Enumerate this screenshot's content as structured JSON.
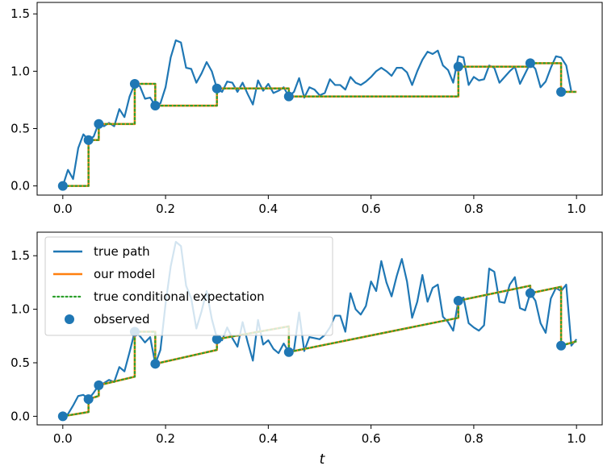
{
  "chart_data": [
    {
      "type": "line",
      "panel": "top",
      "title": "",
      "xlabel": "",
      "ylabel": "",
      "xlim": [
        -0.05,
        1.05
      ],
      "ylim": [
        -0.08,
        1.6
      ],
      "xticks": [
        0.0,
        0.2,
        0.4,
        0.6,
        0.8,
        1.0
      ],
      "xtick_labels": [
        "0.0",
        "0.2",
        "0.4",
        "0.6",
        "0.8",
        "1.0"
      ],
      "yticks": [
        0.0,
        0.5,
        1.0,
        1.5
      ],
      "ytick_labels": [
        "0.0",
        "0.5",
        "1.0",
        "1.5"
      ],
      "grid": false,
      "legend": null,
      "series": [
        {
          "name": "true path",
          "kind": "line",
          "color": "#1f77b4",
          "x": [
            0.0,
            0.01,
            0.02,
            0.03,
            0.04,
            0.05,
            0.06,
            0.07,
            0.08,
            0.09,
            0.1,
            0.11,
            0.12,
            0.13,
            0.14,
            0.15,
            0.16,
            0.17,
            0.18,
            0.19,
            0.2,
            0.21,
            0.22,
            0.23,
            0.24,
            0.25,
            0.26,
            0.27,
            0.28,
            0.29,
            0.3,
            0.31,
            0.32,
            0.33,
            0.34,
            0.35,
            0.36,
            0.37,
            0.38,
            0.39,
            0.4,
            0.41,
            0.42,
            0.43,
            0.44,
            0.45,
            0.46,
            0.47,
            0.48,
            0.49,
            0.5,
            0.51,
            0.52,
            0.53,
            0.54,
            0.55,
            0.56,
            0.57,
            0.58,
            0.59,
            0.6,
            0.61,
            0.62,
            0.63,
            0.64,
            0.65,
            0.66,
            0.67,
            0.68,
            0.69,
            0.7,
            0.71,
            0.72,
            0.73,
            0.74,
            0.75,
            0.76,
            0.77,
            0.78,
            0.79,
            0.8,
            0.81,
            0.82,
            0.83,
            0.84,
            0.85,
            0.86,
            0.87,
            0.88,
            0.89,
            0.9,
            0.91,
            0.92,
            0.93,
            0.94,
            0.95,
            0.96,
            0.97,
            0.98,
            0.99,
            1.0
          ],
          "y": [
            0.0,
            0.14,
            0.06,
            0.33,
            0.45,
            0.4,
            0.43,
            0.55,
            0.52,
            0.55,
            0.52,
            0.67,
            0.6,
            0.78,
            0.89,
            0.87,
            0.76,
            0.77,
            0.7,
            0.72,
            0.86,
            1.12,
            1.27,
            1.25,
            1.03,
            1.02,
            0.9,
            0.98,
            1.08,
            1.0,
            0.85,
            0.82,
            0.91,
            0.9,
            0.82,
            0.9,
            0.8,
            0.71,
            0.92,
            0.83,
            0.89,
            0.81,
            0.83,
            0.86,
            0.78,
            0.82,
            0.94,
            0.77,
            0.86,
            0.84,
            0.79,
            0.81,
            0.93,
            0.88,
            0.88,
            0.84,
            0.95,
            0.9,
            0.88,
            0.91,
            0.95,
            1.0,
            1.03,
            1.0,
            0.96,
            1.03,
            1.03,
            0.99,
            0.88,
            1.0,
            1.1,
            1.17,
            1.15,
            1.18,
            1.05,
            1.01,
            0.9,
            1.13,
            1.12,
            0.88,
            0.95,
            0.92,
            0.93,
            1.05,
            1.03,
            0.9,
            0.95,
            1.0,
            1.04,
            0.89,
            0.98,
            1.07,
            1.02,
            0.86,
            0.91,
            1.03,
            1.13,
            1.12,
            1.05,
            0.82,
            0.82
          ]
        },
        {
          "name": "our model",
          "kind": "line",
          "color": "#ff7f0e",
          "x": [
            0.0,
            0.05,
            0.05,
            0.07,
            0.07,
            0.14,
            0.14,
            0.18,
            0.18,
            0.3,
            0.3,
            0.44,
            0.44,
            0.77,
            0.77,
            0.91,
            0.91,
            0.97,
            0.97,
            1.0
          ],
          "y": [
            0.0,
            0.0,
            0.4,
            0.4,
            0.54,
            0.54,
            0.89,
            0.89,
            0.7,
            0.7,
            0.85,
            0.85,
            0.78,
            0.78,
            1.04,
            1.04,
            1.07,
            1.07,
            0.82,
            0.82
          ]
        },
        {
          "name": "true conditional expectation",
          "kind": "dotted",
          "color": "#2ca02c",
          "x": [
            0.0,
            0.05,
            0.05,
            0.07,
            0.07,
            0.14,
            0.14,
            0.18,
            0.18,
            0.3,
            0.3,
            0.44,
            0.44,
            0.77,
            0.77,
            0.91,
            0.91,
            0.97,
            0.97,
            1.0
          ],
          "y": [
            0.0,
            0.0,
            0.4,
            0.4,
            0.54,
            0.54,
            0.89,
            0.89,
            0.7,
            0.7,
            0.85,
            0.85,
            0.78,
            0.78,
            1.04,
            1.04,
            1.07,
            1.07,
            0.82,
            0.82
          ]
        },
        {
          "name": "observed",
          "kind": "scatter",
          "color": "#1f77b4",
          "x": [
            0.0,
            0.05,
            0.07,
            0.14,
            0.18,
            0.3,
            0.44,
            0.77,
            0.91,
            0.97
          ],
          "y": [
            0.0,
            0.4,
            0.54,
            0.89,
            0.7,
            0.85,
            0.78,
            1.04,
            1.07,
            0.82
          ]
        }
      ]
    },
    {
      "type": "line",
      "panel": "bottom",
      "title": "",
      "xlabel": "t",
      "ylabel": "",
      "xlim": [
        -0.05,
        1.05
      ],
      "ylim": [
        -0.08,
        1.72
      ],
      "xticks": [
        0.0,
        0.2,
        0.4,
        0.6,
        0.8,
        1.0
      ],
      "xtick_labels": [
        "0.0",
        "0.2",
        "0.4",
        "0.6",
        "0.8",
        "1.0"
      ],
      "yticks": [
        0.0,
        0.5,
        1.0,
        1.5
      ],
      "ytick_labels": [
        "0.0",
        "0.5",
        "1.0",
        "1.5"
      ],
      "grid": false,
      "legend": {
        "location": "upper-left",
        "entries": [
          "true path",
          "our model",
          "true conditional expectation",
          "observed"
        ]
      },
      "series": [
        {
          "name": "true path",
          "kind": "line",
          "color": "#1f77b4",
          "x": [
            0.0,
            0.01,
            0.02,
            0.03,
            0.04,
            0.05,
            0.06,
            0.07,
            0.08,
            0.09,
            0.1,
            0.11,
            0.12,
            0.13,
            0.14,
            0.15,
            0.16,
            0.17,
            0.18,
            0.19,
            0.2,
            0.21,
            0.22,
            0.23,
            0.24,
            0.25,
            0.26,
            0.27,
            0.28,
            0.29,
            0.3,
            0.31,
            0.32,
            0.33,
            0.34,
            0.35,
            0.36,
            0.37,
            0.38,
            0.39,
            0.4,
            0.41,
            0.42,
            0.43,
            0.44,
            0.45,
            0.46,
            0.47,
            0.48,
            0.49,
            0.5,
            0.51,
            0.52,
            0.53,
            0.54,
            0.55,
            0.56,
            0.57,
            0.58,
            0.59,
            0.6,
            0.61,
            0.62,
            0.63,
            0.64,
            0.65,
            0.66,
            0.67,
            0.68,
            0.69,
            0.7,
            0.71,
            0.72,
            0.73,
            0.74,
            0.75,
            0.76,
            0.77,
            0.78,
            0.79,
            0.8,
            0.81,
            0.82,
            0.83,
            0.84,
            0.85,
            0.86,
            0.87,
            0.88,
            0.89,
            0.9,
            0.91,
            0.92,
            0.93,
            0.94,
            0.95,
            0.96,
            0.97,
            0.98,
            0.99,
            1.0
          ],
          "y": [
            0.0,
            0.02,
            0.1,
            0.19,
            0.2,
            0.16,
            0.22,
            0.29,
            0.31,
            0.34,
            0.32,
            0.46,
            0.42,
            0.6,
            0.79,
            0.75,
            0.69,
            0.74,
            0.49,
            0.62,
            1.05,
            1.4,
            1.63,
            1.59,
            1.22,
            1.1,
            0.82,
            0.98,
            1.17,
            0.91,
            0.73,
            0.71,
            0.83,
            0.73,
            0.65,
            0.88,
            0.69,
            0.52,
            0.9,
            0.67,
            0.71,
            0.63,
            0.59,
            0.68,
            0.6,
            0.62,
            0.97,
            0.61,
            0.74,
            0.73,
            0.72,
            0.76,
            0.83,
            0.94,
            0.94,
            0.79,
            1.15,
            1.0,
            0.95,
            1.03,
            1.26,
            1.17,
            1.45,
            1.25,
            1.12,
            1.31,
            1.47,
            1.26,
            0.92,
            1.07,
            1.32,
            1.07,
            1.2,
            1.23,
            0.93,
            0.88,
            0.8,
            1.08,
            1.11,
            0.87,
            0.83,
            0.8,
            0.85,
            1.38,
            1.35,
            1.07,
            1.06,
            1.23,
            1.3,
            1.01,
            0.99,
            1.15,
            1.08,
            0.87,
            0.78,
            1.1,
            1.2,
            1.17,
            1.23,
            0.66,
            0.72
          ]
        },
        {
          "name": "our model",
          "kind": "line",
          "color": "#ff7f0e",
          "x": [
            0.0,
            0.05,
            0.05,
            0.07,
            0.07,
            0.14,
            0.14,
            0.18,
            0.18,
            0.3,
            0.3,
            0.44,
            0.44,
            0.77,
            0.77,
            0.91,
            0.91,
            0.97,
            0.97,
            1.0
          ],
          "y": [
            0.0,
            0.04,
            0.16,
            0.19,
            0.29,
            0.37,
            0.79,
            0.79,
            0.49,
            0.62,
            0.72,
            0.84,
            0.6,
            0.92,
            1.08,
            1.22,
            1.15,
            1.21,
            0.66,
            0.7
          ]
        },
        {
          "name": "true conditional expectation",
          "kind": "dotted",
          "color": "#2ca02c",
          "x": [
            0.0,
            0.05,
            0.05,
            0.07,
            0.07,
            0.14,
            0.14,
            0.18,
            0.18,
            0.3,
            0.3,
            0.44,
            0.44,
            0.77,
            0.77,
            0.91,
            0.91,
            0.97,
            0.97,
            1.0
          ],
          "y": [
            0.0,
            0.04,
            0.16,
            0.19,
            0.29,
            0.37,
            0.79,
            0.79,
            0.49,
            0.62,
            0.72,
            0.84,
            0.6,
            0.92,
            1.08,
            1.22,
            1.15,
            1.21,
            0.66,
            0.7
          ]
        },
        {
          "name": "observed",
          "kind": "scatter",
          "color": "#1f77b4",
          "x": [
            0.0,
            0.05,
            0.07,
            0.14,
            0.18,
            0.3,
            0.44,
            0.77,
            0.91,
            0.97
          ],
          "y": [
            0.0,
            0.16,
            0.29,
            0.79,
            0.49,
            0.72,
            0.6,
            1.08,
            1.15,
            0.66
          ]
        }
      ]
    }
  ]
}
